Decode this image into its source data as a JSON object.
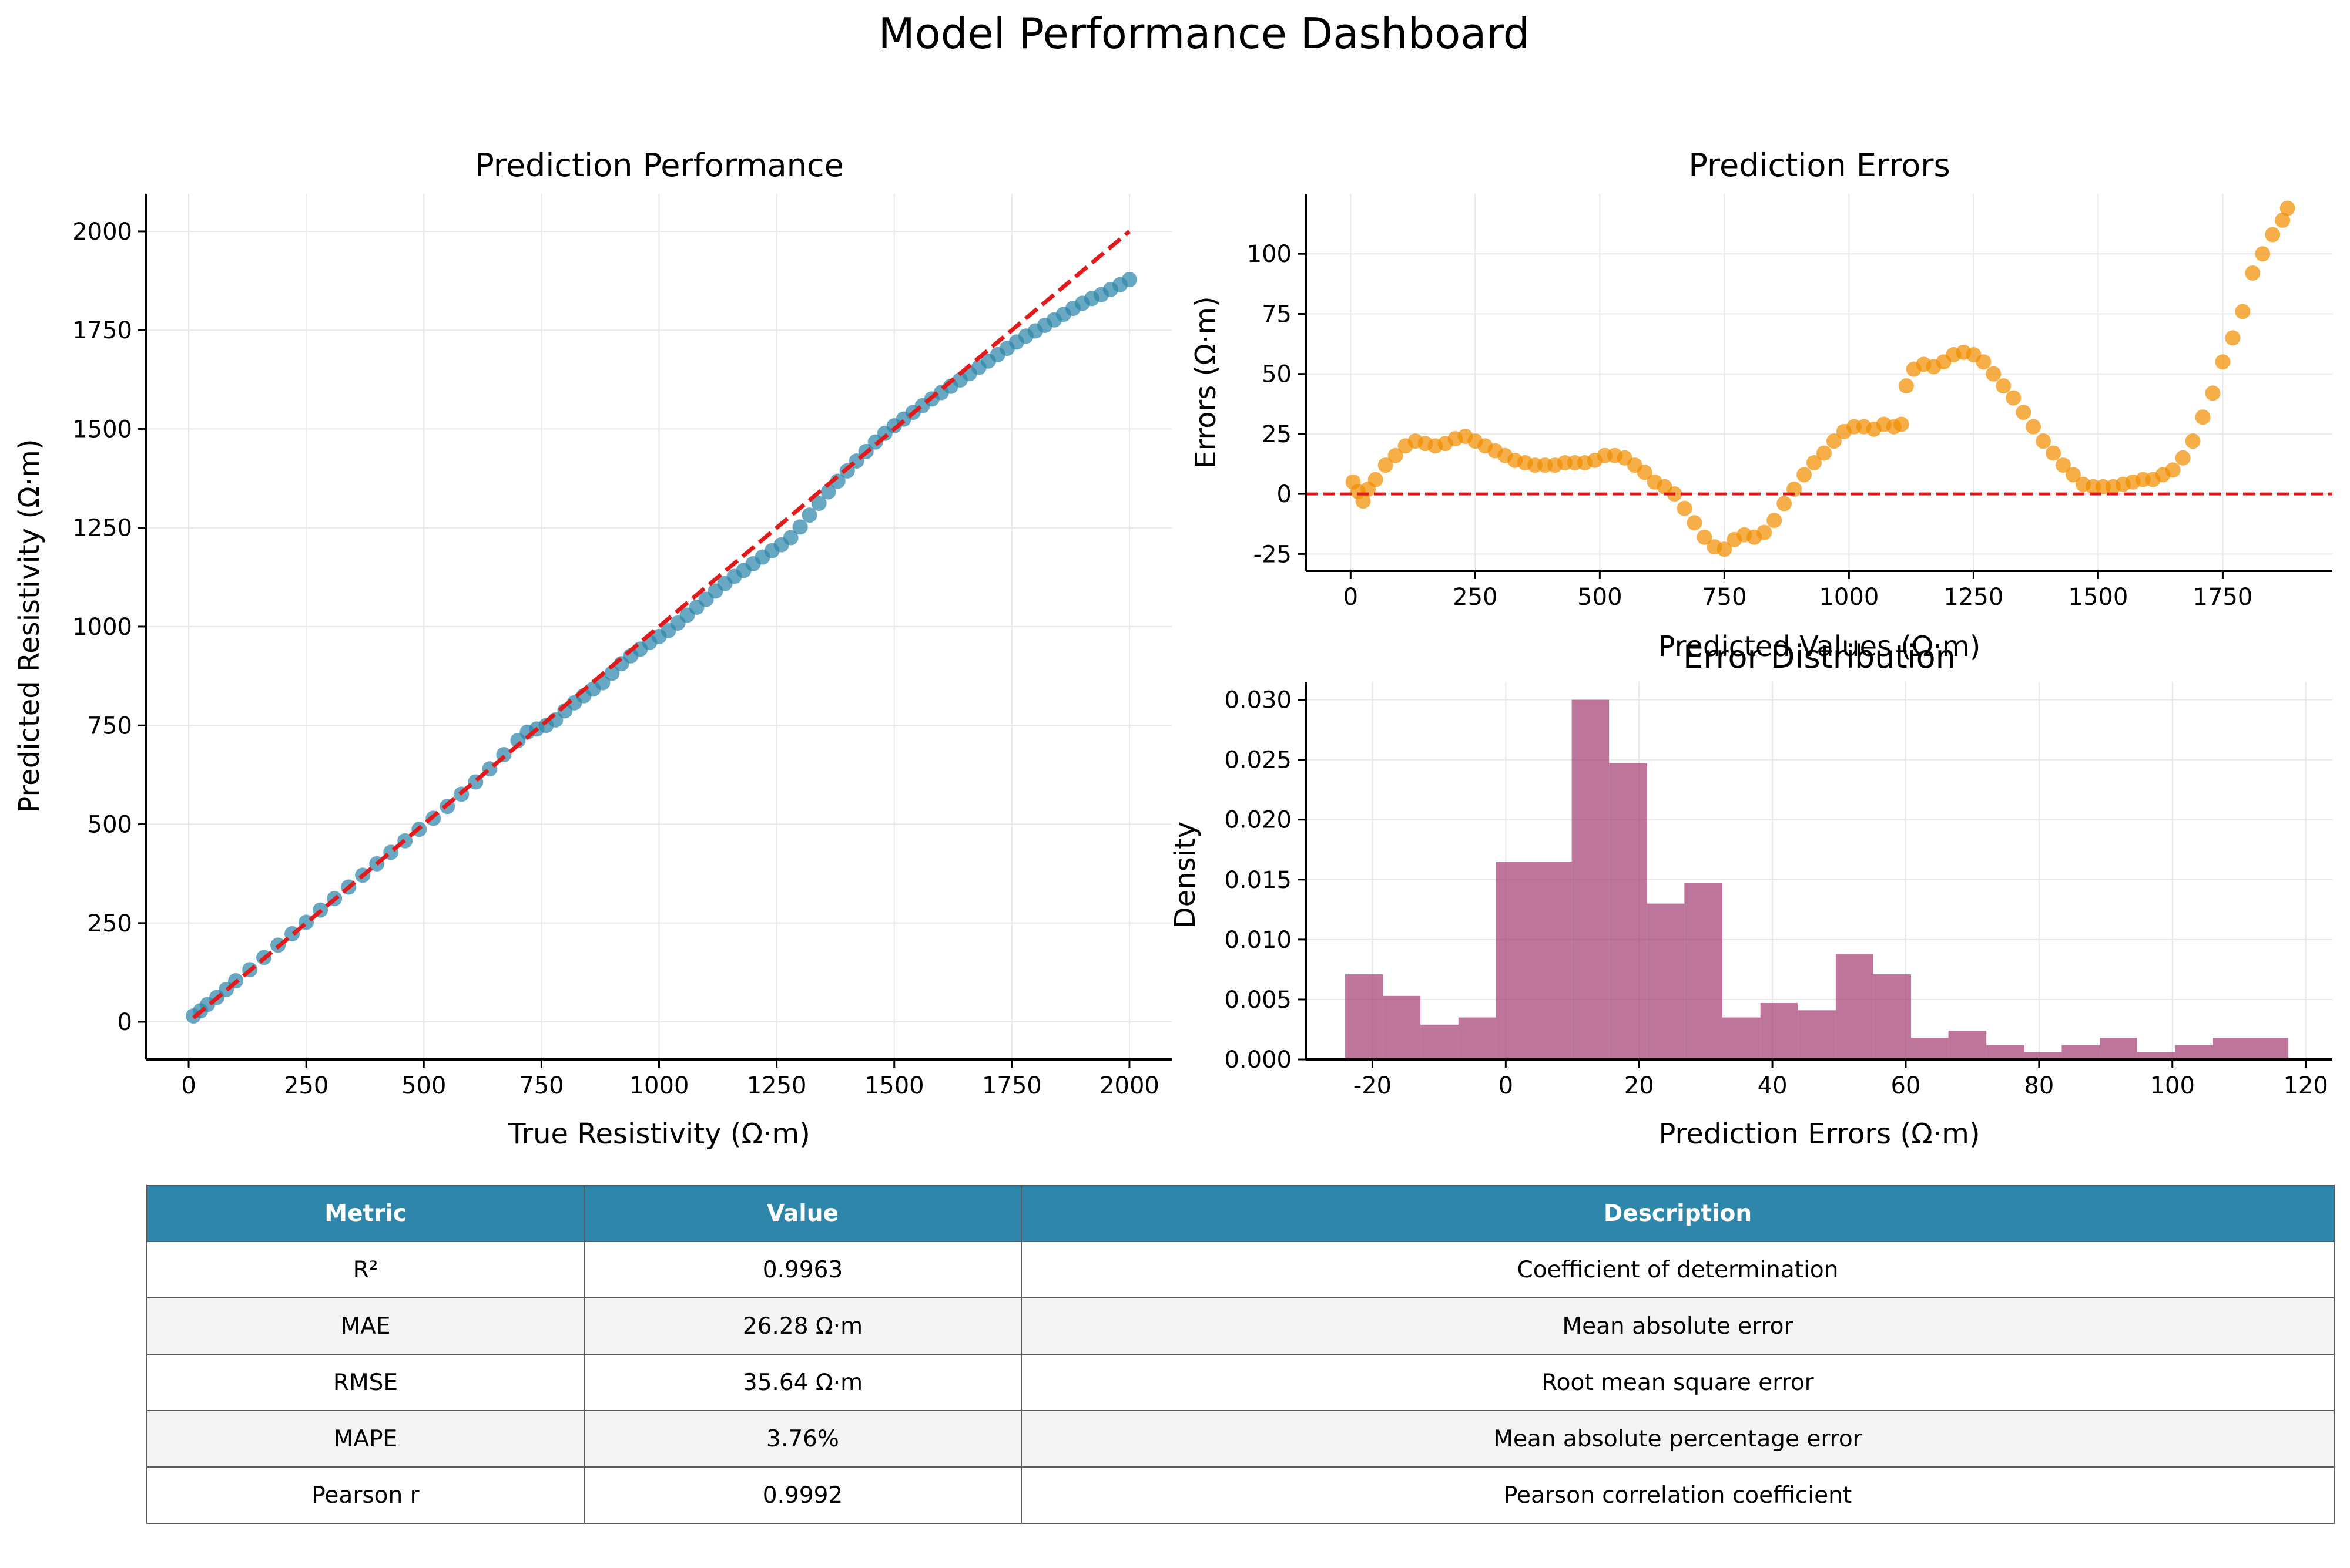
{
  "figure": {
    "title": "Model Performance Dashboard"
  },
  "colors": {
    "scatter": "#2e86ab",
    "errors": "#f18f01",
    "histogram": "#a23b72",
    "reference_line": "#e31a1c",
    "table_header": "#2e86ab"
  },
  "chart_data": [
    {
      "type": "scatter",
      "title": "Prediction Performance",
      "xlabel": "True Resistivity (Ω·m)",
      "ylabel": "Predicted Resistivity (Ω·m)",
      "xlim": [
        -90,
        2090
      ],
      "ylim": [
        -95,
        2095
      ],
      "xticks": [
        0,
        250,
        500,
        750,
        1000,
        1250,
        1500,
        1750,
        2000
      ],
      "yticks": [
        0,
        250,
        500,
        750,
        1000,
        1250,
        1500,
        1750,
        2000
      ],
      "grid": true,
      "reference_line": {
        "style": "dashed",
        "color": "#e31a1c",
        "from": [
          10,
          10
        ],
        "to": [
          2000,
          2000
        ]
      },
      "x": [
        10,
        25,
        40,
        60,
        80,
        100,
        130,
        160,
        190,
        220,
        250,
        280,
        310,
        340,
        370,
        400,
        430,
        460,
        490,
        520,
        550,
        580,
        610,
        640,
        670,
        700,
        720,
        740,
        760,
        780,
        800,
        820,
        840,
        860,
        880,
        900,
        920,
        940,
        960,
        980,
        1000,
        1020,
        1040,
        1060,
        1080,
        1100,
        1120,
        1140,
        1160,
        1180,
        1200,
        1220,
        1240,
        1260,
        1280,
        1300,
        1320,
        1340,
        1360,
        1380,
        1400,
        1420,
        1440,
        1460,
        1480,
        1500,
        1520,
        1540,
        1560,
        1580,
        1600,
        1620,
        1640,
        1660,
        1680,
        1700,
        1720,
        1740,
        1760,
        1780,
        1800,
        1820,
        1840,
        1860,
        1880,
        1900,
        1920,
        1940,
        1960,
        1980,
        2000
      ],
      "y": [
        15,
        28,
        44,
        62,
        82,
        104,
        132,
        163,
        194,
        223,
        252,
        283,
        312,
        341,
        371,
        400,
        429,
        458,
        487,
        515,
        545,
        576,
        607,
        640,
        676,
        712,
        733,
        741,
        750,
        764,
        787,
        807,
        825,
        842,
        858,
        882,
        906,
        926,
        943,
        960,
        975,
        990,
        1009,
        1029,
        1049,
        1069,
        1090,
        1109,
        1127,
        1142,
        1159,
        1176,
        1192,
        1207,
        1225,
        1252,
        1282,
        1312,
        1341,
        1368,
        1394,
        1419,
        1443,
        1467,
        1489,
        1508,
        1525,
        1542,
        1559,
        1576,
        1592,
        1608,
        1624,
        1640,
        1656,
        1672,
        1688,
        1704,
        1720,
        1735,
        1748,
        1762,
        1776,
        1790,
        1805,
        1818,
        1830,
        1840,
        1853,
        1865,
        1878
      ]
    },
    {
      "type": "scatter",
      "title": "Prediction Errors",
      "xlabel": "Predicted Values (Ω·m)",
      "ylabel": "Errors (Ω·m)",
      "xlim": [
        -90,
        1970
      ],
      "ylim": [
        -32,
        125
      ],
      "xticks": [
        0,
        250,
        500,
        750,
        1000,
        1250,
        1500,
        1750
      ],
      "yticks": [
        -25,
        0,
        25,
        50,
        75,
        100
      ],
      "grid": true,
      "reference_line": {
        "style": "dashed",
        "color": "#e31a1c",
        "y": 0
      },
      "x": [
        5,
        15,
        25,
        35,
        50,
        70,
        90,
        110,
        130,
        150,
        170,
        190,
        210,
        230,
        250,
        270,
        290,
        310,
        330,
        350,
        370,
        390,
        410,
        430,
        450,
        470,
        490,
        510,
        530,
        550,
        570,
        590,
        610,
        630,
        650,
        670,
        690,
        710,
        730,
        750,
        770,
        790,
        810,
        830,
        850,
        870,
        890,
        910,
        930,
        950,
        970,
        990,
        1010,
        1030,
        1050,
        1070,
        1090,
        1105,
        1115,
        1130,
        1150,
        1170,
        1190,
        1210,
        1230,
        1250,
        1270,
        1290,
        1310,
        1330,
        1350,
        1370,
        1390,
        1410,
        1430,
        1450,
        1470,
        1490,
        1510,
        1530,
        1550,
        1570,
        1590,
        1610,
        1630,
        1650,
        1670,
        1690,
        1710,
        1730,
        1750,
        1770,
        1790,
        1810,
        1830,
        1850,
        1870,
        1880
      ],
      "y": [
        5,
        1,
        -3,
        2,
        6,
        12,
        16,
        20,
        22,
        21,
        20,
        21,
        23,
        24,
        22,
        20,
        18,
        16,
        14,
        13,
        12,
        12,
        12,
        13,
        13,
        13,
        14,
        16,
        16,
        15,
        12,
        9,
        5,
        3,
        0,
        -6,
        -12,
        -18,
        -22,
        -23,
        -19,
        -17,
        -18,
        -16,
        -11,
        -4,
        2,
        8,
        13,
        17,
        22,
        26,
        28,
        28,
        27,
        29,
        28,
        29,
        45,
        52,
        54,
        53,
        55,
        58,
        59,
        58,
        55,
        50,
        45,
        40,
        34,
        28,
        22,
        17,
        12,
        8,
        4,
        3,
        3,
        3,
        4,
        5,
        6,
        6,
        8,
        10,
        15,
        22,
        32,
        42,
        55,
        65,
        76,
        92,
        100,
        108,
        114,
        119
      ]
    },
    {
      "type": "bar",
      "title": "Error Distribution",
      "xlabel": "Prediction Errors (Ω·m)",
      "ylabel": "Density",
      "xlim": [
        -30,
        124
      ],
      "ylim": [
        0,
        0.0315
      ],
      "xticks": [
        -20,
        0,
        20,
        40,
        60,
        80,
        100,
        120
      ],
      "yticks": [
        0.0,
        0.005,
        0.01,
        0.015,
        0.02,
        0.025,
        0.03
      ],
      "grid": true,
      "bin_edges": [
        -24.1,
        -18.4,
        -12.8,
        -7.1,
        -1.5,
        4.2,
        9.9,
        15.5,
        21.2,
        26.8,
        32.5,
        38.2,
        43.8,
        49.5,
        55.1,
        60.8,
        66.4,
        72.1,
        77.8,
        83.4,
        89.1,
        94.7,
        100.4,
        106.1,
        111.7,
        117.4
      ],
      "values": [
        0.0071,
        0.0053,
        0.0029,
        0.0035,
        0.0165,
        0.0165,
        0.03,
        0.0247,
        0.013,
        0.0147,
        0.0035,
        0.0047,
        0.0041,
        0.0088,
        0.0071,
        0.0018,
        0.0024,
        0.0012,
        0.0006,
        0.0012,
        0.0018,
        0.0006,
        0.0012,
        0.0018,
        0.0018
      ]
    }
  ],
  "table": {
    "headers": [
      "Metric",
      "Value",
      "Description"
    ],
    "rows": [
      [
        "R²",
        "0.9963",
        "Coefficient of determination"
      ],
      [
        "MAE",
        "26.28 Ω·m",
        "Mean absolute error"
      ],
      [
        "RMSE",
        "35.64 Ω·m",
        "Root mean square error"
      ],
      [
        "MAPE",
        "3.76%",
        "Mean absolute percentage error"
      ],
      [
        "Pearson r",
        "0.9992",
        "Pearson correlation coefficient"
      ]
    ]
  }
}
